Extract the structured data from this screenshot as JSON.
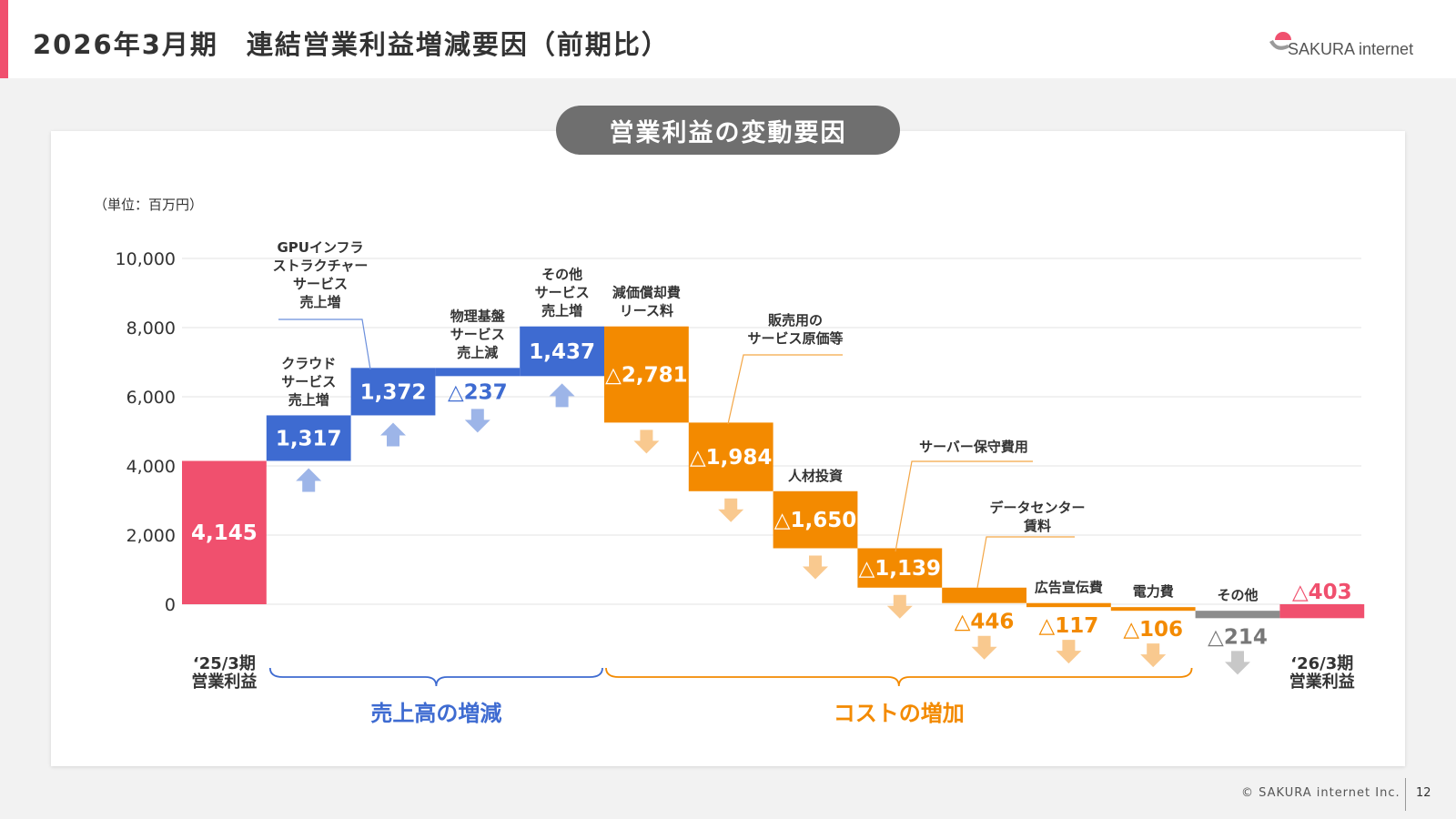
{
  "header": {
    "title": "2026年3月期　連結営業利益増減要因（前期比）",
    "logo_text": "SAKURA internet"
  },
  "chart_badge": "営業利益の変動要因",
  "unit_label": "（単位：百万円）",
  "footer": {
    "copyright": "© SAKURA internet Inc.",
    "page_number": "12"
  },
  "colors": {
    "start_bar": "#f0506e",
    "revenue": "#3e6bd1",
    "revenue_arrow": "#9db5e8",
    "cost": "#f38a00",
    "cost_arrow": "#f9c98f",
    "other": "#8c8c8c",
    "other_arrow": "#c8c8c8",
    "end": "#f0506e"
  },
  "groups": [
    {
      "label": "売上高の増減",
      "color": "#3e6bd1"
    },
    {
      "label": "コストの増加",
      "color": "#f38a00"
    }
  ],
  "chart_data": {
    "type": "waterfall",
    "ylim": [
      0,
      10000
    ],
    "yticks": [
      "0",
      "2,000",
      "4,000",
      "6,000",
      "8,000",
      "10,000"
    ],
    "ytick_values": [
      0,
      2000,
      4000,
      6000,
      8000,
      10000
    ],
    "grid": true,
    "steps": [
      {
        "label": [
          "‘25/3期",
          "営業利益"
        ],
        "value": 4145,
        "display": "4,145",
        "kind": "start"
      },
      {
        "label": [
          "クラウド",
          "サービス",
          "売上増"
        ],
        "value": 1317,
        "display": "1,317",
        "kind": "revenue"
      },
      {
        "label": [
          "GPUインフラ",
          "ストラクチャー",
          "サービス",
          "売上増"
        ],
        "value": 1372,
        "display": "1,372",
        "kind": "revenue"
      },
      {
        "label": [
          "物理基盤",
          "サービス",
          "売上減"
        ],
        "value": -237,
        "display": "△237",
        "kind": "revenue"
      },
      {
        "label": [
          "その他",
          "サービス",
          "売上増"
        ],
        "value": 1437,
        "display": "1,437",
        "kind": "revenue"
      },
      {
        "label": [
          "減価償却費",
          "リース料"
        ],
        "value": -2781,
        "display": "△2,781",
        "kind": "cost"
      },
      {
        "label": [
          "販売用の",
          "サービス原価等"
        ],
        "value": -1984,
        "display": "△1,984",
        "kind": "cost"
      },
      {
        "label": [
          "人材投資"
        ],
        "value": -1650,
        "display": "△1,650",
        "kind": "cost"
      },
      {
        "label": [
          "サーバー保守費用"
        ],
        "value": -1139,
        "display": "△1,139",
        "kind": "cost"
      },
      {
        "label": [
          "データセンター",
          "賃料"
        ],
        "value": -446,
        "display": "△446",
        "kind": "cost"
      },
      {
        "label": [
          "広告宣伝費"
        ],
        "value": -117,
        "display": "△117",
        "kind": "cost"
      },
      {
        "label": [
          "電力費"
        ],
        "value": -106,
        "display": "△106",
        "kind": "cost"
      },
      {
        "label": [
          "その他"
        ],
        "value": -214,
        "display": "△214",
        "kind": "other"
      },
      {
        "label": [
          "‘26/3期",
          "営業利益"
        ],
        "value": -403,
        "display": "△403",
        "kind": "end"
      }
    ]
  }
}
